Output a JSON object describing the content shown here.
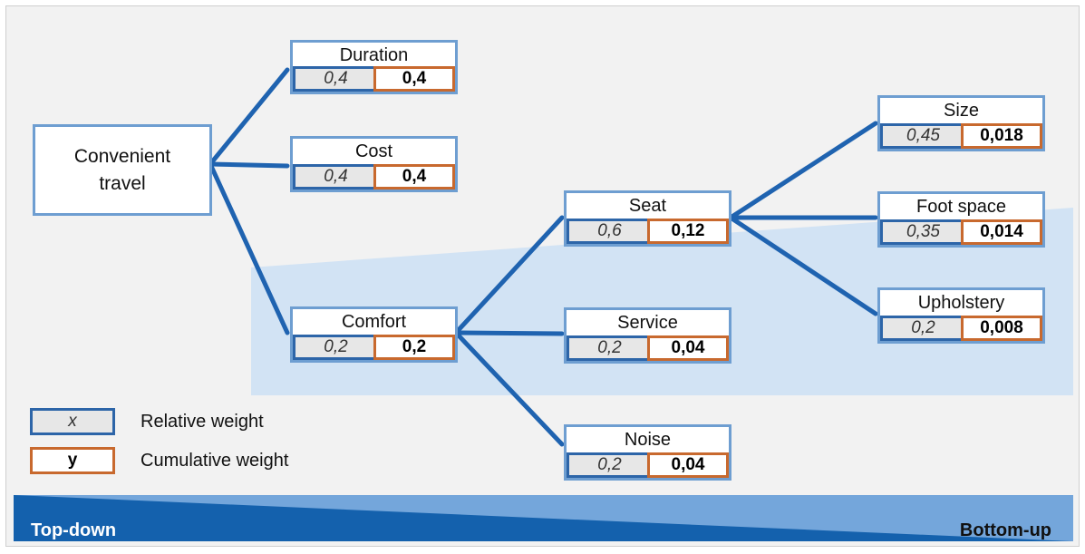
{
  "root": {
    "label": "Convenient travel"
  },
  "nodes": {
    "duration": {
      "label": "Duration",
      "rel": "0,4",
      "cum": "0,4"
    },
    "cost": {
      "label": "Cost",
      "rel": "0,4",
      "cum": "0,4"
    },
    "comfort": {
      "label": "Comfort",
      "rel": "0,2",
      "cum": "0,2"
    },
    "seat": {
      "label": "Seat",
      "rel": "0,6",
      "cum": "0,12"
    },
    "service": {
      "label": "Service",
      "rel": "0,2",
      "cum": "0,04"
    },
    "noise": {
      "label": "Noise",
      "rel": "0,2",
      "cum": "0,04"
    },
    "size": {
      "label": "Size",
      "rel": "0,45",
      "cum": "0,018"
    },
    "foot_space": {
      "label": "Foot space",
      "rel": "0,35",
      "cum": "0,014"
    },
    "upholstery": {
      "label": "Upholstery",
      "rel": "0,2",
      "cum": "0,008"
    }
  },
  "legend": {
    "relative": {
      "symbol": "x",
      "label": "Relative weight"
    },
    "cumulative": {
      "symbol": "y",
      "label": "Cumulative weight"
    }
  },
  "banner": {
    "left": "Top-down",
    "right": "Bottom-up"
  },
  "colors": {
    "background": "#f2f2f2",
    "connector": "#1f63b0",
    "node_border": "#6e9ed1",
    "relative_border": "#2d65a8",
    "cumulative_border": "#c8692e",
    "highlight_area": "#d2e3f4",
    "banner_dark": "#1461ad",
    "banner_light": "#74a6db"
  }
}
